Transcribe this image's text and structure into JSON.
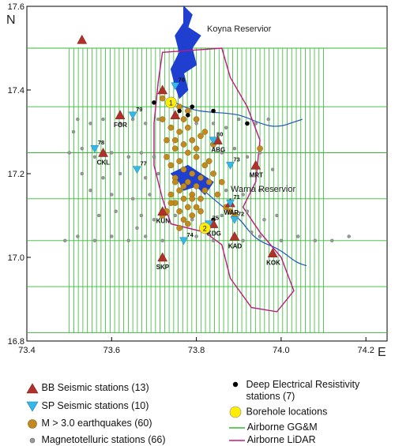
{
  "map": {
    "north_label": "N",
    "east_label": "E",
    "x_ticks": [
      "73.4",
      "73.6",
      "73.8",
      "74.0",
      "74.2"
    ],
    "y_ticks": [
      "17.6",
      "17.4",
      "17.2",
      "17.0",
      "16.8"
    ],
    "place_labels": {
      "koyna": "Koyna Reservior",
      "warna": "Warna Reservior"
    },
    "colors": {
      "frame": "#000000",
      "ggm_lines": "#33bb33",
      "lidar_boundary": "#c01880",
      "river": "#1f4fbf",
      "reservoir": "#1f3fd0",
      "bb_station": "#b0302a",
      "sp_station": "#33b8e8",
      "earthquake": "#c08a20",
      "mt_station": "#9a9a9a",
      "borehole": "#ffee00"
    },
    "bb_stations": [
      {
        "lon": 73.53,
        "lat": 17.52,
        "label": ""
      },
      {
        "lon": 73.62,
        "lat": 17.34,
        "label": "FOR"
      },
      {
        "lon": 73.58,
        "lat": 17.25,
        "label": "CKL"
      },
      {
        "lon": 73.72,
        "lat": 17.4,
        "label": ""
      },
      {
        "lon": 73.75,
        "lat": 17.34,
        "label": ""
      },
      {
        "lon": 73.94,
        "lat": 17.22,
        "label": "MRT"
      },
      {
        "lon": 73.72,
        "lat": 17.11,
        "label": "KUN"
      },
      {
        "lon": 73.88,
        "lat": 17.13,
        "label": "WAR"
      },
      {
        "lon": 73.84,
        "lat": 17.08,
        "label": "KDG"
      },
      {
        "lon": 73.89,
        "lat": 17.05,
        "label": "KAD"
      },
      {
        "lon": 73.72,
        "lat": 17.0,
        "label": "SKP"
      },
      {
        "lon": 73.98,
        "lat": 17.01,
        "label": "KOK"
      },
      {
        "lon": 73.85,
        "lat": 17.28,
        "label": "ABG"
      }
    ],
    "sp_stations": [
      {
        "lon": 73.75,
        "lat": 17.41,
        "label": "76"
      },
      {
        "lon": 73.65,
        "lat": 17.34,
        "label": "79"
      },
      {
        "lon": 73.56,
        "lat": 17.26,
        "label": "78"
      },
      {
        "lon": 73.66,
        "lat": 17.21,
        "label": "77"
      },
      {
        "lon": 73.84,
        "lat": 17.28,
        "label": "80"
      },
      {
        "lon": 73.88,
        "lat": 17.22,
        "label": "73"
      },
      {
        "lon": 73.88,
        "lat": 17.13,
        "label": "71"
      },
      {
        "lon": 73.89,
        "lat": 17.09,
        "label": "72"
      },
      {
        "lon": 73.77,
        "lat": 17.04,
        "label": "74"
      },
      {
        "lon": 73.83,
        "lat": 17.08,
        "label": "75"
      }
    ],
    "earthquakes": [
      [
        73.76,
        17.36
      ],
      [
        73.77,
        17.33
      ],
      [
        73.78,
        17.31
      ],
      [
        73.76,
        17.3
      ],
      [
        73.79,
        17.28
      ],
      [
        73.77,
        17.27
      ],
      [
        73.75,
        17.26
      ],
      [
        73.78,
        17.25
      ],
      [
        73.8,
        17.24
      ],
      [
        73.76,
        17.23
      ],
      [
        73.74,
        17.22
      ],
      [
        73.77,
        17.21
      ],
      [
        73.79,
        17.2
      ],
      [
        73.81,
        17.19
      ],
      [
        73.75,
        17.19
      ],
      [
        73.78,
        17.18
      ],
      [
        73.8,
        17.17
      ],
      [
        73.76,
        17.16
      ],
      [
        73.82,
        17.16
      ],
      [
        73.74,
        17.15
      ],
      [
        73.79,
        17.15
      ],
      [
        73.77,
        17.14
      ],
      [
        73.81,
        17.14
      ],
      [
        73.75,
        17.13
      ],
      [
        73.78,
        17.12
      ],
      [
        73.8,
        17.12
      ],
      [
        73.76,
        17.11
      ],
      [
        73.73,
        17.11
      ],
      [
        73.72,
        17.1
      ],
      [
        73.79,
        17.1
      ],
      [
        73.77,
        17.09
      ],
      [
        73.83,
        17.18
      ],
      [
        73.84,
        17.2
      ],
      [
        73.82,
        17.22
      ],
      [
        73.8,
        17.26
      ],
      [
        73.73,
        17.28
      ],
      [
        73.74,
        17.31
      ],
      [
        73.72,
        17.33
      ],
      [
        73.8,
        17.33
      ],
      [
        73.81,
        17.29
      ],
      [
        73.84,
        17.27
      ],
      [
        73.83,
        17.23
      ],
      [
        73.75,
        17.18
      ],
      [
        73.77,
        17.17
      ],
      [
        73.79,
        17.14
      ],
      [
        73.81,
        17.11
      ],
      [
        73.78,
        17.08
      ],
      [
        73.74,
        17.13
      ],
      [
        73.76,
        17.07
      ],
      [
        73.85,
        17.15
      ],
      [
        73.86,
        17.18
      ],
      [
        73.87,
        17.12
      ],
      [
        73.88,
        17.11
      ],
      [
        73.89,
        17.1
      ],
      [
        73.95,
        17.26
      ],
      [
        73.72,
        17.38
      ],
      [
        73.73,
        17.24
      ],
      [
        73.75,
        17.28
      ],
      [
        73.82,
        17.3
      ],
      [
        73.78,
        17.35
      ]
    ],
    "resistivity_stations": [
      [
        73.7,
        17.37
      ],
      [
        73.76,
        17.35
      ],
      [
        73.78,
        17.34
      ],
      [
        73.84,
        17.35
      ],
      [
        73.92,
        17.32
      ],
      [
        73.79,
        17.36
      ],
      [
        73.84,
        17.09
      ]
    ],
    "boreholes": [
      {
        "lon": 73.74,
        "lat": 17.37,
        "label": "1"
      },
      {
        "lon": 73.82,
        "lat": 17.07,
        "label": "2"
      }
    ],
    "mt_stations": [
      [
        73.52,
        17.33
      ],
      [
        73.55,
        17.32
      ],
      [
        73.58,
        17.33
      ],
      [
        73.62,
        17.32
      ],
      [
        73.65,
        17.33
      ],
      [
        73.68,
        17.32
      ],
      [
        73.71,
        17.33
      ],
      [
        73.8,
        17.32
      ],
      [
        73.84,
        17.32
      ],
      [
        73.87,
        17.31
      ],
      [
        73.9,
        17.33
      ],
      [
        73.94,
        17.32
      ],
      [
        73.97,
        17.33
      ],
      [
        73.5,
        17.25
      ],
      [
        73.53,
        17.26
      ],
      [
        73.56,
        17.24
      ],
      [
        73.6,
        17.25
      ],
      [
        73.64,
        17.24
      ],
      [
        73.67,
        17.25
      ],
      [
        73.7,
        17.24
      ],
      [
        73.86,
        17.25
      ],
      [
        73.89,
        17.26
      ],
      [
        73.92,
        17.24
      ],
      [
        73.95,
        17.25
      ],
      [
        73.53,
        17.2
      ],
      [
        73.58,
        17.19
      ],
      [
        73.62,
        17.2
      ],
      [
        73.68,
        17.19
      ],
      [
        73.71,
        17.2
      ],
      [
        73.55,
        17.16
      ],
      [
        73.6,
        17.15
      ],
      [
        73.65,
        17.14
      ],
      [
        73.69,
        17.15
      ],
      [
        73.87,
        17.16
      ],
      [
        73.91,
        17.15
      ],
      [
        73.95,
        17.16
      ],
      [
        73.57,
        17.1
      ],
      [
        73.61,
        17.11
      ],
      [
        73.67,
        17.1
      ],
      [
        73.7,
        17.09
      ],
      [
        73.75,
        17.1
      ],
      [
        73.79,
        17.09
      ],
      [
        73.86,
        17.1
      ],
      [
        73.92,
        17.11
      ],
      [
        73.96,
        17.09
      ],
      [
        73.99,
        17.1
      ],
      [
        73.49,
        17.04
      ],
      [
        73.52,
        17.05
      ],
      [
        73.56,
        17.04
      ],
      [
        73.6,
        17.05
      ],
      [
        73.64,
        17.04
      ],
      [
        73.68,
        17.05
      ],
      [
        73.72,
        17.04
      ],
      [
        73.8,
        17.05
      ],
      [
        73.84,
        17.04
      ],
      [
        73.91,
        17.04
      ],
      [
        73.95,
        17.05
      ],
      [
        74.0,
        17.04
      ],
      [
        74.04,
        17.05
      ],
      [
        74.08,
        17.04
      ],
      [
        74.12,
        17.04
      ],
      [
        74.16,
        17.05
      ],
      [
        73.51,
        17.3
      ],
      [
        73.98,
        17.21
      ],
      [
        73.66,
        17.07
      ],
      [
        73.93,
        17.06
      ]
    ]
  },
  "legend": {
    "bb": "BB Seismic stations (13)",
    "sp": "SP Seismic stations (10)",
    "eq": "M > 3.0 earthquakes  (60)",
    "mt": "Magnetotelluric stations (66)",
    "der_line1": "Deep Electrical Resistivity",
    "der_line2": "stations (7)",
    "borehole": "Borehole locations",
    "ggm": "Airborne GG&M",
    "lidar": "Airborne LiDAR"
  }
}
